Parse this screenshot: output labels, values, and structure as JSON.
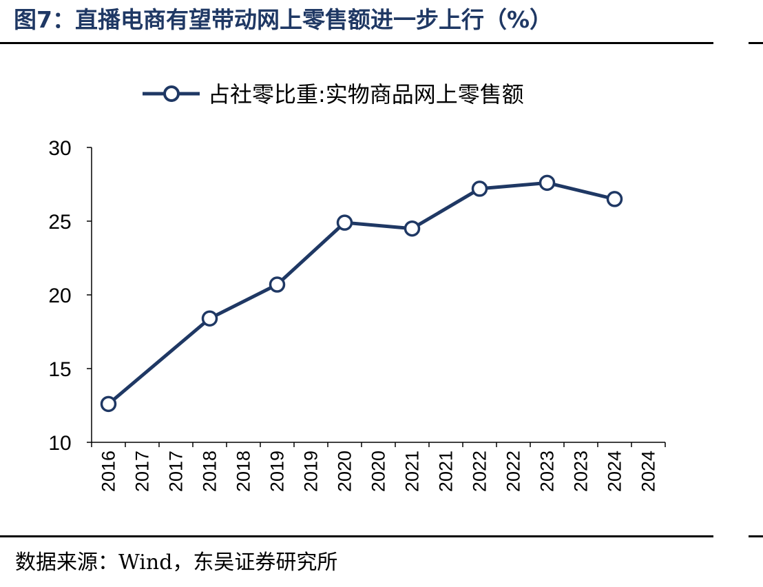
{
  "figure": {
    "title": "图7：直播电商有望带动网上零售额进一步上行（%）",
    "source": "数据来源：Wind，东吴证券研究所"
  },
  "chart_data": {
    "type": "line",
    "title": "",
    "xlabel": "",
    "ylabel": "",
    "categories": [
      "2016",
      "2017",
      "2017",
      "2018",
      "2018",
      "2019",
      "2019",
      "2020",
      "2020",
      "2021",
      "2021",
      "2022",
      "2022",
      "2023",
      "2023",
      "2024",
      "2024"
    ],
    "series": [
      {
        "name": "占社零比重:实物商品网上零售额",
        "color": "#1f3864",
        "points": [
          {
            "x": "2016",
            "y": 12.6
          },
          {
            "x": "2018",
            "y": 18.4
          },
          {
            "x": "2019",
            "y": 20.7
          },
          {
            "x": "2020",
            "y": 24.9
          },
          {
            "x": "2021",
            "y": 24.5
          },
          {
            "x": "2022",
            "y": 27.2
          },
          {
            "x": "2023",
            "y": 27.6
          },
          {
            "x": "2024",
            "y": 26.5
          }
        ]
      }
    ],
    "ylim": [
      10,
      30
    ],
    "yticks": [
      10,
      15,
      20,
      25,
      30
    ],
    "grid": false,
    "legend": "top-center"
  }
}
